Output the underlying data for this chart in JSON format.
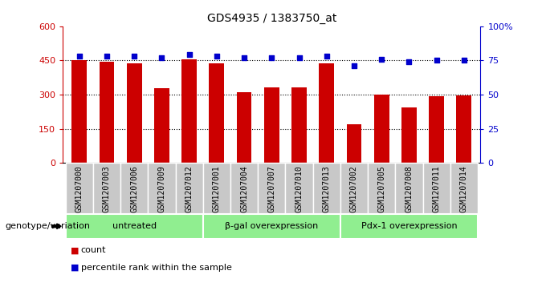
{
  "title": "GDS4935 / 1383750_at",
  "samples": [
    "GSM1207000",
    "GSM1207003",
    "GSM1207006",
    "GSM1207009",
    "GSM1207012",
    "GSM1207001",
    "GSM1207004",
    "GSM1207007",
    "GSM1207010",
    "GSM1207013",
    "GSM1207002",
    "GSM1207005",
    "GSM1207008",
    "GSM1207011",
    "GSM1207014"
  ],
  "counts": [
    450,
    443,
    437,
    328,
    455,
    438,
    312,
    330,
    330,
    438,
    170,
    300,
    245,
    293,
    295
  ],
  "percentiles": [
    78,
    78,
    78,
    77,
    79,
    78,
    77,
    77,
    77,
    78,
    71,
    76,
    74,
    75,
    75
  ],
  "groups": [
    {
      "label": "untreated",
      "start": 0,
      "end": 4
    },
    {
      "label": "β-gal overexpression",
      "start": 5,
      "end": 9
    },
    {
      "label": "Pdx-1 overexpression",
      "start": 10,
      "end": 14
    }
  ],
  "bar_color": "#cc0000",
  "dot_color": "#0000cc",
  "group_bg_color": "#90ee90",
  "sample_bg_color": "#c8c8c8",
  "ylim_left": [
    0,
    600
  ],
  "ylim_right": [
    0,
    100
  ],
  "yticks_left": [
    0,
    150,
    300,
    450,
    600
  ],
  "yticks_right": [
    0,
    25,
    50,
    75,
    100
  ],
  "ylabel_left_color": "#cc0000",
  "ylabel_right_color": "#0000cc",
  "grid_lines": [
    150,
    300,
    450
  ],
  "legend_items": [
    {
      "label": "count",
      "color": "#cc0000"
    },
    {
      "label": "percentile rank within the sample",
      "color": "#0000cc"
    }
  ],
  "genotype_label": "genotype/variation"
}
